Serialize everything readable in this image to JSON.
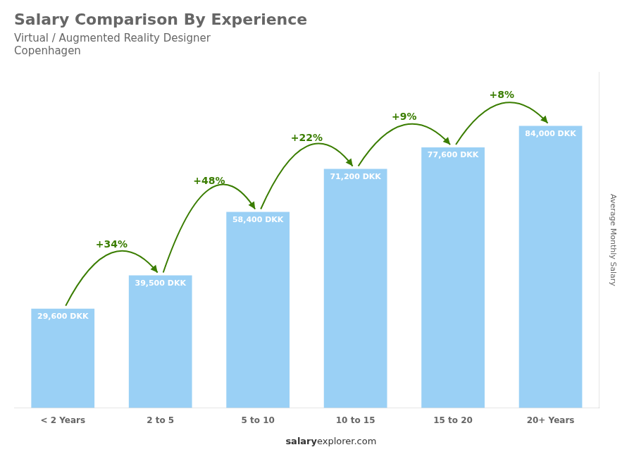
{
  "chart_data": {
    "type": "bar",
    "title": "Salary Comparison By Experience",
    "subtitle": [
      "Virtual / Augmented Reality Designer",
      "Copenhagen"
    ],
    "ylabel": "Average Monthly Salary",
    "footer": [
      "salary",
      "explorer.com"
    ],
    "categories": [
      "< 2 Years",
      "2 to 5",
      "5 to 10",
      "10 to 15",
      "15 to 20",
      "20+ Years"
    ],
    "values": [
      29600,
      39500,
      58400,
      71200,
      77600,
      84000
    ],
    "value_labels": [
      "29,600 DKK",
      "39,500 DKK",
      "58,400 DKK",
      "71,200 DKK",
      "77,600 DKK",
      "84,000 DKK"
    ],
    "data_labels": true,
    "annotations": [
      {
        "text": "+34%",
        "between": [
          "< 2 Years",
          "2 to 5"
        ]
      },
      {
        "text": "+48%",
        "between": [
          "2 to 5",
          "5 to 10"
        ]
      },
      {
        "text": "+22%",
        "between": [
          "5 to 10",
          "10 to 15"
        ]
      },
      {
        "text": "+9%",
        "between": [
          "10 to 15",
          "15 to 20"
        ]
      },
      {
        "text": "+8%",
        "between": [
          "15 to 20",
          "20+ Years"
        ]
      }
    ],
    "ylim": [
      0,
      100000
    ],
    "grid": false,
    "tick_labels": "x"
  }
}
